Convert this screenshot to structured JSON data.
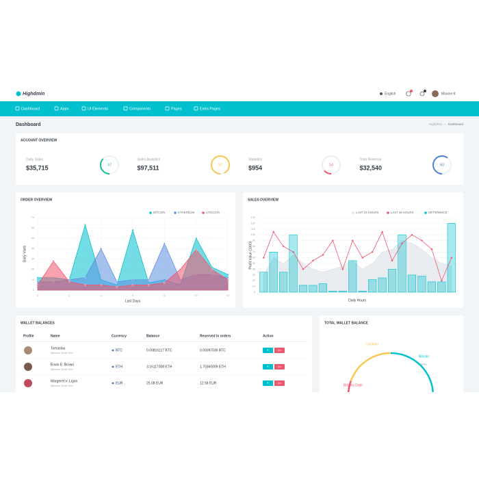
{
  "nav": {
    "logo": "Highdmin",
    "language": "English",
    "user": "Maxine K"
  },
  "menu": [
    "Dashboard",
    "Apps",
    "UI Elements",
    "Components",
    "Pages",
    "Extra Pages"
  ],
  "page": {
    "title": "Dashboard",
    "breadcrumb": [
      "Highdmin",
      "Dashboard"
    ]
  },
  "account_overview": {
    "title": "ACCOUNT OVERVIEW",
    "stats": [
      {
        "label": "Daily Sales",
        "value": "$35,715",
        "percent": 37,
        "color": "#1bb99a"
      },
      {
        "label": "Sales Analytics",
        "value": "$97,511",
        "percent": 92,
        "color": "#f9c851"
      },
      {
        "label": "Statistics",
        "value": "$954",
        "percent": 14,
        "color": "#f1556c"
      },
      {
        "label": "Total Revenue",
        "value": "$32,540",
        "percent": 60,
        "color": "#4a81d4"
      }
    ]
  },
  "order_overview": {
    "title": "ORDER OVERVIEW",
    "type": "area",
    "xlabel": "Last Days",
    "ylabel": "Daily Visits",
    "x": [
      0,
      1,
      2,
      3,
      4,
      5,
      6,
      7,
      8,
      9,
      10,
      11,
      12
    ],
    "xlim": [
      0,
      12
    ],
    "xticks": [
      0,
      2,
      4,
      6,
      8,
      10,
      12
    ],
    "ylim": [
      0,
      70
    ],
    "yticks": [
      0,
      10,
      20,
      30,
      40,
      50,
      60,
      70
    ],
    "series": [
      {
        "name": "BITCOIN",
        "color": "#02c0ce",
        "values": [
          12,
          12,
          10,
          63,
          10,
          5,
          58,
          7,
          10,
          5,
          50,
          22,
          15
        ]
      },
      {
        "name": "ETHEREUM",
        "color": "#5b8fe0",
        "values": [
          8,
          8,
          10,
          12,
          40,
          8,
          10,
          10,
          45,
          10,
          15,
          15,
          12
        ]
      },
      {
        "name": "LITECOIN",
        "color": "#f1556c",
        "values": [
          5,
          28,
          8,
          5,
          5,
          3,
          5,
          5,
          7,
          20,
          39,
          20,
          10
        ]
      }
    ]
  },
  "sales_overview": {
    "title": "SALES OVERVIEW",
    "type": "bar-line",
    "xlabel": "Daily Hours",
    "ylabel": "Profit Value (1000)",
    "ylim": [
      0,
      130
    ],
    "yticks": [
      0,
      10,
      20,
      30,
      40,
      50,
      60,
      70,
      80,
      90,
      100,
      110,
      120,
      130
    ],
    "series": [
      {
        "name": "LAST 24 HOURS",
        "color": "#dfe4ea",
        "kind": "area",
        "values": [
          30,
          60,
          50,
          65,
          50,
          40,
          35,
          40,
          45,
          55,
          40,
          50,
          70,
          75,
          90,
          85,
          75,
          60,
          50,
          45
        ]
      },
      {
        "name": "LAST 48 HOURS",
        "color": "#f1556c",
        "kind": "line",
        "values": [
          60,
          105,
          80,
          70,
          40,
          55,
          65,
          90,
          40,
          90,
          60,
          70,
          105,
          55,
          85,
          100,
          90,
          75,
          20,
          60
        ]
      },
      {
        "name": "DIFFERENCE",
        "color": "#02c0ce",
        "kind": "bar",
        "values": [
          35,
          70,
          35,
          100,
          12,
          12,
          15,
          2,
          2,
          55,
          2,
          22,
          25,
          40,
          100,
          30,
          28,
          18,
          18,
          120
        ]
      }
    ]
  },
  "wallet": {
    "title": "WALLET BALANCES",
    "headers": [
      "Profile",
      "Name",
      "Currency",
      "Balance",
      "Reserved in orders",
      "Action"
    ],
    "rows": [
      {
        "name": "Tomaslau",
        "since": "Member Since 2017",
        "currency": "BTC",
        "balance": "0.00816117 BTC",
        "reserved": "0.00097036 BTC"
      },
      {
        "name": "Erwin E. Brown",
        "since": "Member Since 2017",
        "currency": "ETH",
        "balance": "3.16117008 ETH",
        "reserved": "1.70360009 ETH"
      },
      {
        "name": "Margeret V. Ligon",
        "since": "Member Since 2017",
        "currency": "EUR",
        "balance": "25.08 EUR",
        "reserved": "12.58 EUR"
      }
    ]
  },
  "total_wallet": {
    "title": "TOTAL WALLET BALANCE",
    "labels": [
      "Cardano",
      "Bitcoin",
      "50%",
      "Bitcoin Cash"
    ]
  }
}
